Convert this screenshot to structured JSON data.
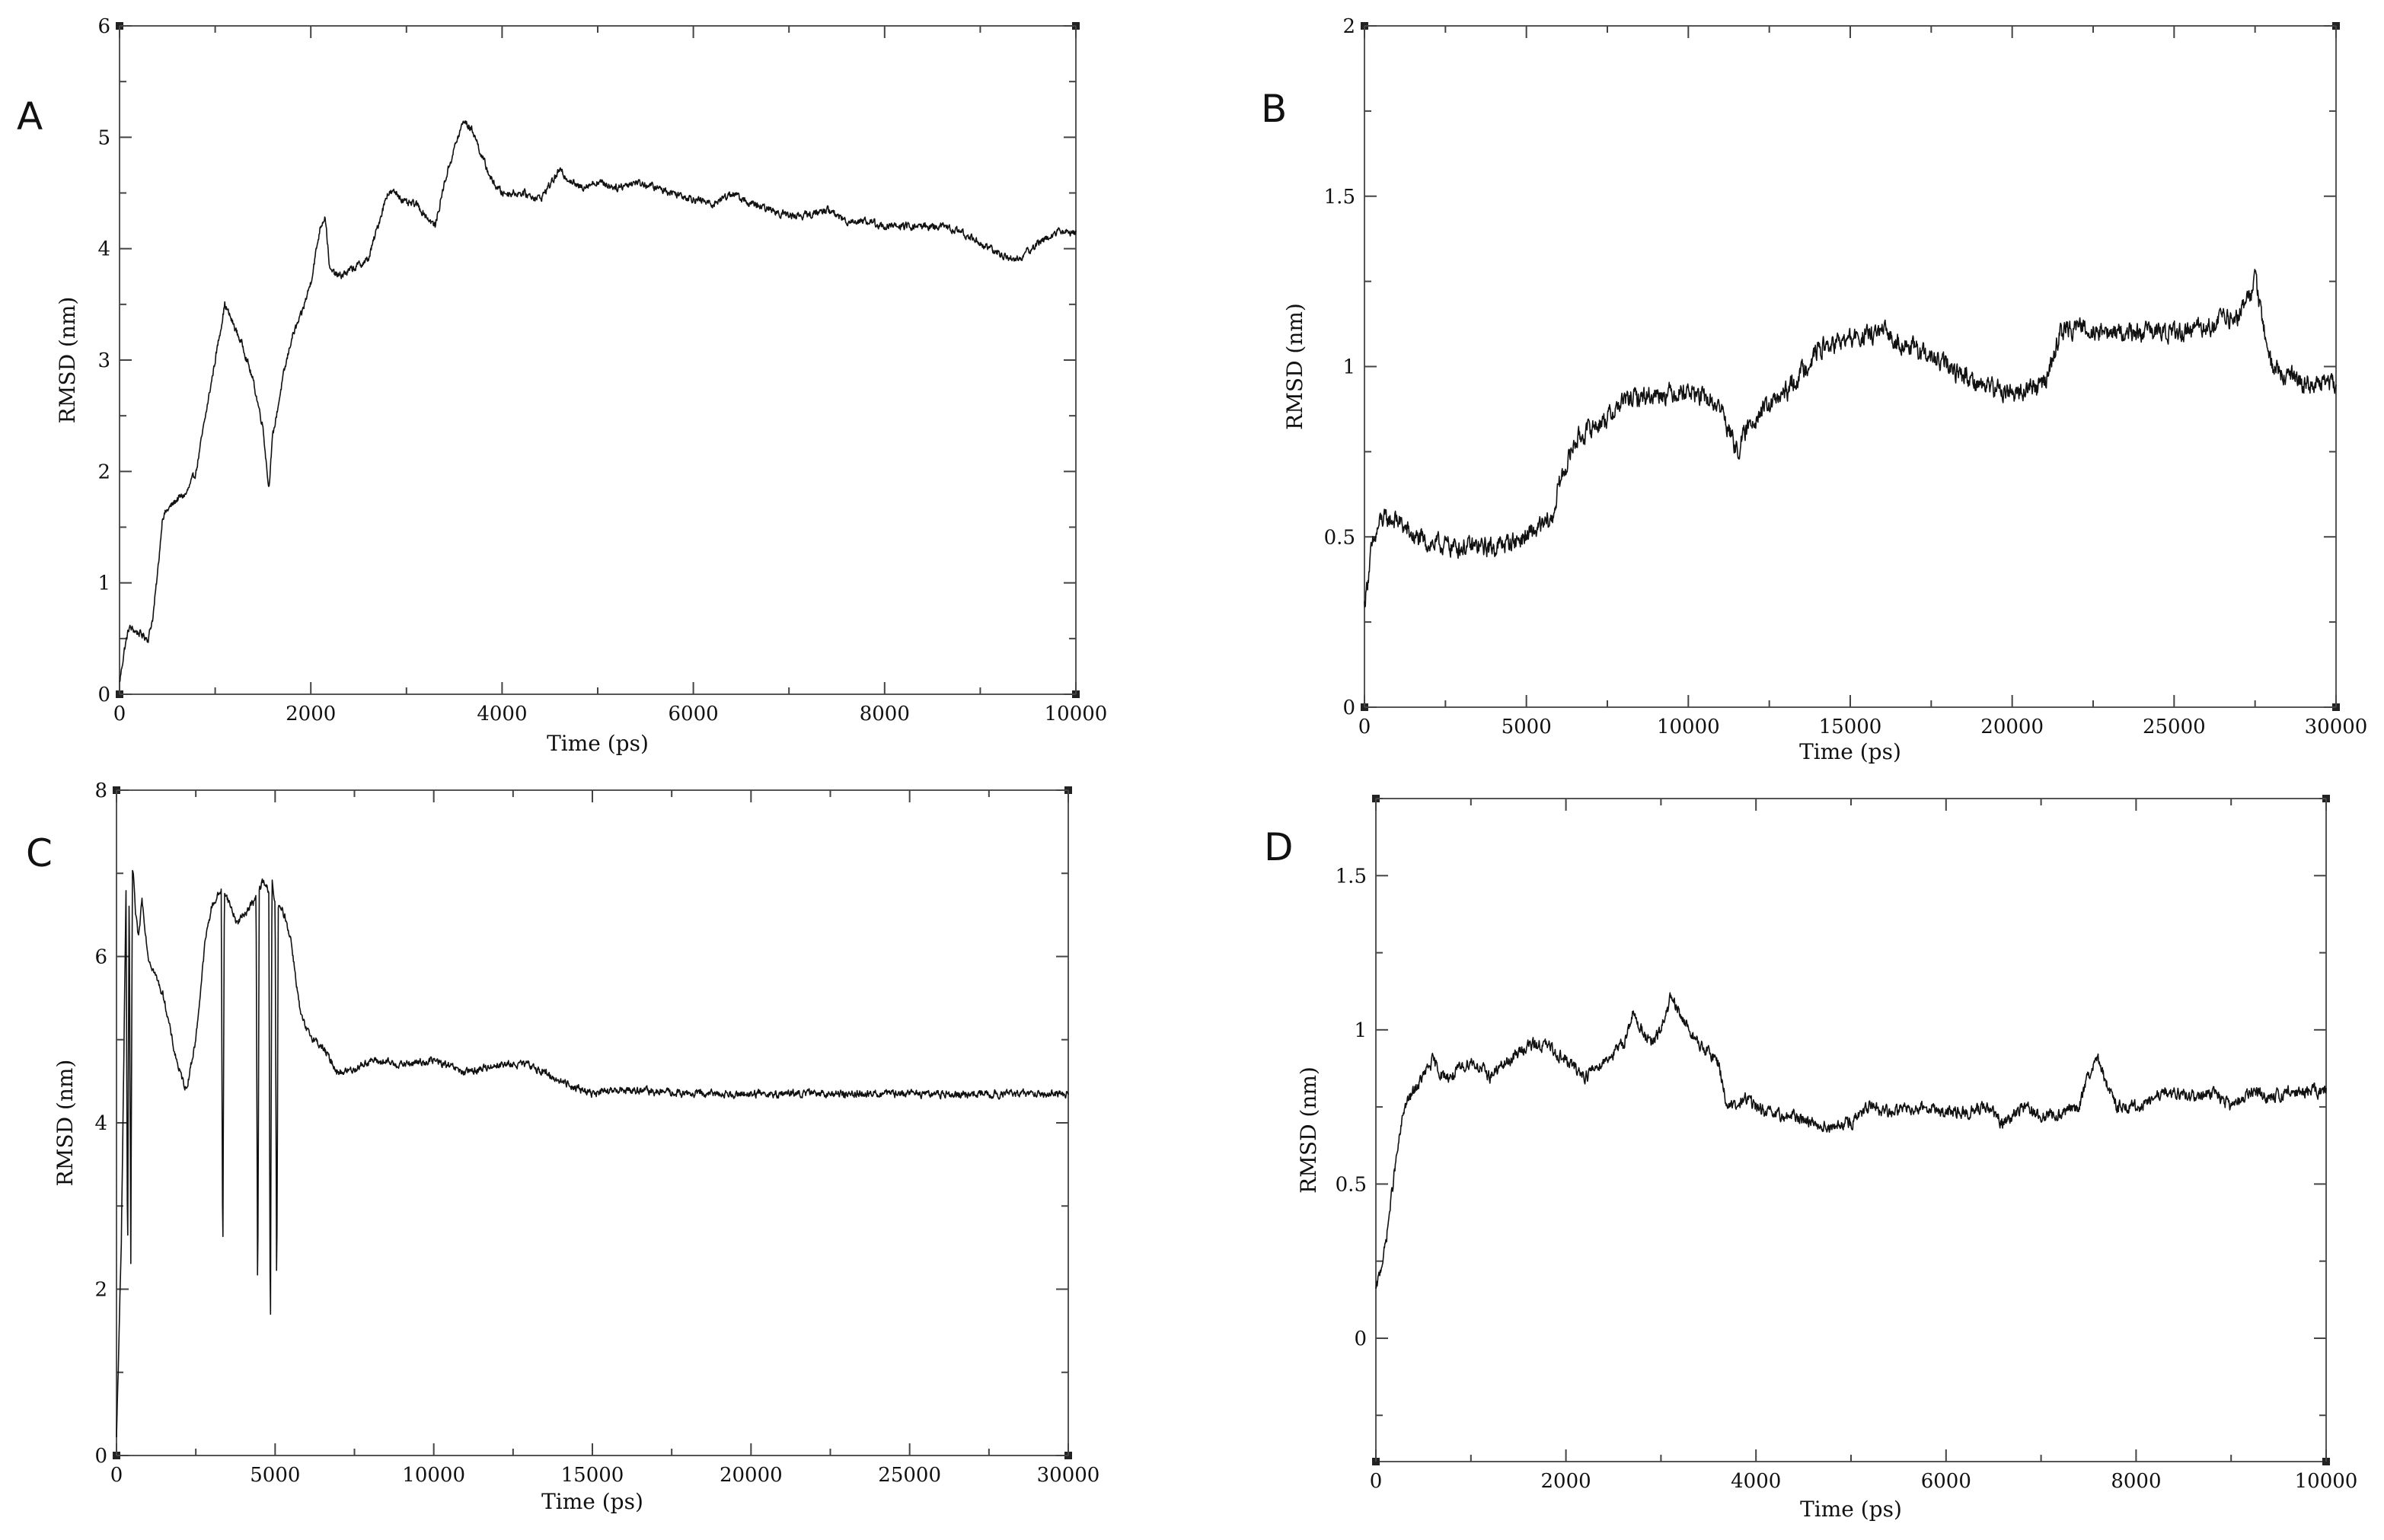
{
  "chart_data": [
    {
      "panel": "A",
      "type": "line",
      "xlabel": "Time (ps)",
      "ylabel": "RMSD (nm)",
      "xlim": [
        0,
        10000
      ],
      "ylim": [
        0,
        6
      ],
      "xticks": [
        0,
        2000,
        4000,
        6000,
        8000,
        10000
      ],
      "yticks": [
        0,
        1,
        2,
        3,
        4,
        5,
        6
      ],
      "series": [
        {
          "noise": 0.06,
          "x": [
            0,
            50,
            100,
            200,
            300,
            350,
            400,
            450,
            500,
            600,
            700,
            800,
            900,
            1000,
            1100,
            1200,
            1300,
            1400,
            1500,
            1560,
            1600,
            1700,
            1800,
            1900,
            2000,
            2100,
            2150,
            2200,
            2300,
            2400,
            2500,
            2600,
            2700,
            2800,
            2900,
            3000,
            3100,
            3200,
            3300,
            3400,
            3500,
            3600,
            3700,
            3800,
            3900,
            4000,
            4200,
            4400,
            4600,
            4800,
            5000,
            5200,
            5400,
            5600,
            5800,
            6000,
            6200,
            6400,
            6600,
            6800,
            7000,
            7200,
            7400,
            7600,
            7800,
            8000,
            8200,
            8400,
            8600,
            8800,
            9000,
            9200,
            9400,
            9600,
            9800,
            10000
          ],
          "y": [
            0.1,
            0.4,
            0.6,
            0.55,
            0.5,
            0.7,
            1.1,
            1.6,
            1.65,
            1.75,
            1.8,
            2.0,
            2.5,
            3.0,
            3.5,
            3.3,
            3.1,
            2.8,
            2.4,
            1.85,
            2.3,
            2.8,
            3.2,
            3.4,
            3.7,
            4.2,
            4.3,
            3.8,
            3.75,
            3.8,
            3.85,
            3.9,
            4.2,
            4.5,
            4.5,
            4.4,
            4.4,
            4.3,
            4.2,
            4.6,
            4.9,
            5.15,
            5.05,
            4.8,
            4.6,
            4.5,
            4.5,
            4.45,
            4.7,
            4.55,
            4.6,
            4.55,
            4.6,
            4.55,
            4.5,
            4.45,
            4.4,
            4.5,
            4.4,
            4.35,
            4.3,
            4.3,
            4.35,
            4.25,
            4.25,
            4.2,
            4.2,
            4.2,
            4.2,
            4.15,
            4.05,
            3.95,
            3.9,
            4.05,
            4.15,
            4.15
          ]
        }
      ]
    },
    {
      "panel": "B",
      "type": "line",
      "xlabel": "Time (ps)",
      "ylabel": "RMSD (nm)",
      "xlim": [
        0,
        30000
      ],
      "ylim": [
        0,
        2
      ],
      "xticks": [
        0,
        5000,
        10000,
        15000,
        20000,
        25000,
        30000
      ],
      "yticks": [
        0,
        0.5,
        1,
        1.5,
        2
      ],
      "series": [
        {
          "noise": 0.05,
          "x": [
            0,
            200,
            500,
            1000,
            1500,
            2000,
            3000,
            4000,
            5000,
            5800,
            6000,
            6500,
            7000,
            7500,
            8000,
            9000,
            10000,
            11000,
            11500,
            12000,
            13000,
            14000,
            15000,
            16000,
            17000,
            18000,
            19000,
            20000,
            21000,
            21500,
            22000,
            23000,
            24000,
            25000,
            26000,
            27000,
            27500,
            28000,
            29000,
            30000
          ],
          "y": [
            0.3,
            0.45,
            0.55,
            0.55,
            0.5,
            0.48,
            0.47,
            0.47,
            0.5,
            0.55,
            0.65,
            0.78,
            0.82,
            0.85,
            0.9,
            0.92,
            0.93,
            0.88,
            0.75,
            0.85,
            0.92,
            1.05,
            1.08,
            1.1,
            1.05,
            1.0,
            0.95,
            0.92,
            0.95,
            1.1,
            1.12,
            1.1,
            1.1,
            1.1,
            1.12,
            1.15,
            1.25,
            1.0,
            0.95,
            0.95
          ]
        }
      ]
    },
    {
      "panel": "C",
      "type": "line",
      "xlabel": "Time (ps)",
      "ylabel": "RMSD (nm)",
      "xlim": [
        0,
        30000
      ],
      "ylim": [
        0,
        8
      ],
      "xticks": [
        0,
        5000,
        10000,
        15000,
        20000,
        25000,
        30000
      ],
      "yticks": [
        0,
        2,
        4,
        6,
        8
      ],
      "series": [
        {
          "noise": 0.08,
          "x": [
            0,
            150,
            300,
            350,
            400,
            450,
            500,
            550,
            600,
            700,
            800,
            1000,
            1200,
            1500,
            1800,
            2000,
            2200,
            2500,
            2800,
            3000,
            3300,
            3350,
            3400,
            3500,
            3800,
            4000,
            4200,
            4400,
            4450,
            4500,
            4600,
            4800,
            4850,
            4900,
            5000,
            5050,
            5100,
            5300,
            5500,
            5800,
            6000,
            6500,
            7000,
            7500,
            8000,
            9000,
            10000,
            11000,
            12000,
            13000,
            14000,
            15000,
            16000,
            18000,
            20000,
            22000,
            24000,
            26000,
            28000,
            30000
          ],
          "y": [
            0.2,
            2.5,
            6.8,
            2.2,
            7.0,
            2.3,
            7.0,
            6.9,
            6.5,
            6.2,
            6.7,
            6.0,
            5.8,
            5.5,
            4.9,
            4.6,
            4.4,
            5.0,
            6.2,
            6.6,
            6.8,
            2.2,
            6.8,
            6.7,
            6.4,
            6.5,
            6.6,
            6.7,
            1.7,
            6.8,
            6.9,
            6.8,
            1.2,
            6.9,
            6.6,
            1.8,
            6.6,
            6.5,
            6.2,
            5.3,
            5.1,
            4.9,
            4.6,
            4.65,
            4.75,
            4.7,
            4.75,
            4.6,
            4.7,
            4.7,
            4.5,
            4.35,
            4.4,
            4.35,
            4.35,
            4.35,
            4.35,
            4.35,
            4.35,
            4.35
          ]
        }
      ]
    },
    {
      "panel": "D",
      "type": "line",
      "xlabel": "Time (ps)",
      "ylabel": "RMSD (nm)",
      "xlim": [
        0,
        10000
      ],
      "ylim": [
        -0.4,
        1.75
      ],
      "xticks": [
        0,
        2000,
        4000,
        6000,
        8000,
        10000
      ],
      "yticks": [
        0,
        0.5,
        1,
        1.5
      ],
      "series": [
        {
          "noise": 0.035,
          "x": [
            0,
            100,
            200,
            300,
            400,
            500,
            600,
            700,
            800,
            1000,
            1200,
            1400,
            1600,
            1800,
            2000,
            2200,
            2400,
            2600,
            2700,
            2800,
            2900,
            3000,
            3100,
            3200,
            3300,
            3400,
            3600,
            3700,
            3800,
            3900,
            4000,
            4200,
            4400,
            4600,
            4800,
            5000,
            5200,
            5400,
            5600,
            5800,
            6000,
            6200,
            6400,
            6600,
            6800,
            7000,
            7200,
            7400,
            7500,
            7600,
            7700,
            7800,
            8000,
            8200,
            8400,
            8600,
            8800,
            9000,
            9200,
            9400,
            9600,
            9800,
            10000
          ],
          "y": [
            0.15,
            0.3,
            0.55,
            0.75,
            0.8,
            0.85,
            0.9,
            0.85,
            0.85,
            0.9,
            0.85,
            0.9,
            0.95,
            0.95,
            0.9,
            0.85,
            0.9,
            0.95,
            1.05,
            1.0,
            0.95,
            1.0,
            1.1,
            1.05,
            1.0,
            0.95,
            0.9,
            0.75,
            0.75,
            0.78,
            0.75,
            0.72,
            0.72,
            0.7,
            0.68,
            0.7,
            0.75,
            0.73,
            0.75,
            0.75,
            0.73,
            0.73,
            0.75,
            0.7,
            0.75,
            0.72,
            0.73,
            0.75,
            0.85,
            0.9,
            0.82,
            0.75,
            0.75,
            0.78,
            0.8,
            0.78,
            0.8,
            0.75,
            0.8,
            0.78,
            0.8,
            0.8,
            0.8
          ]
        }
      ]
    }
  ]
}
